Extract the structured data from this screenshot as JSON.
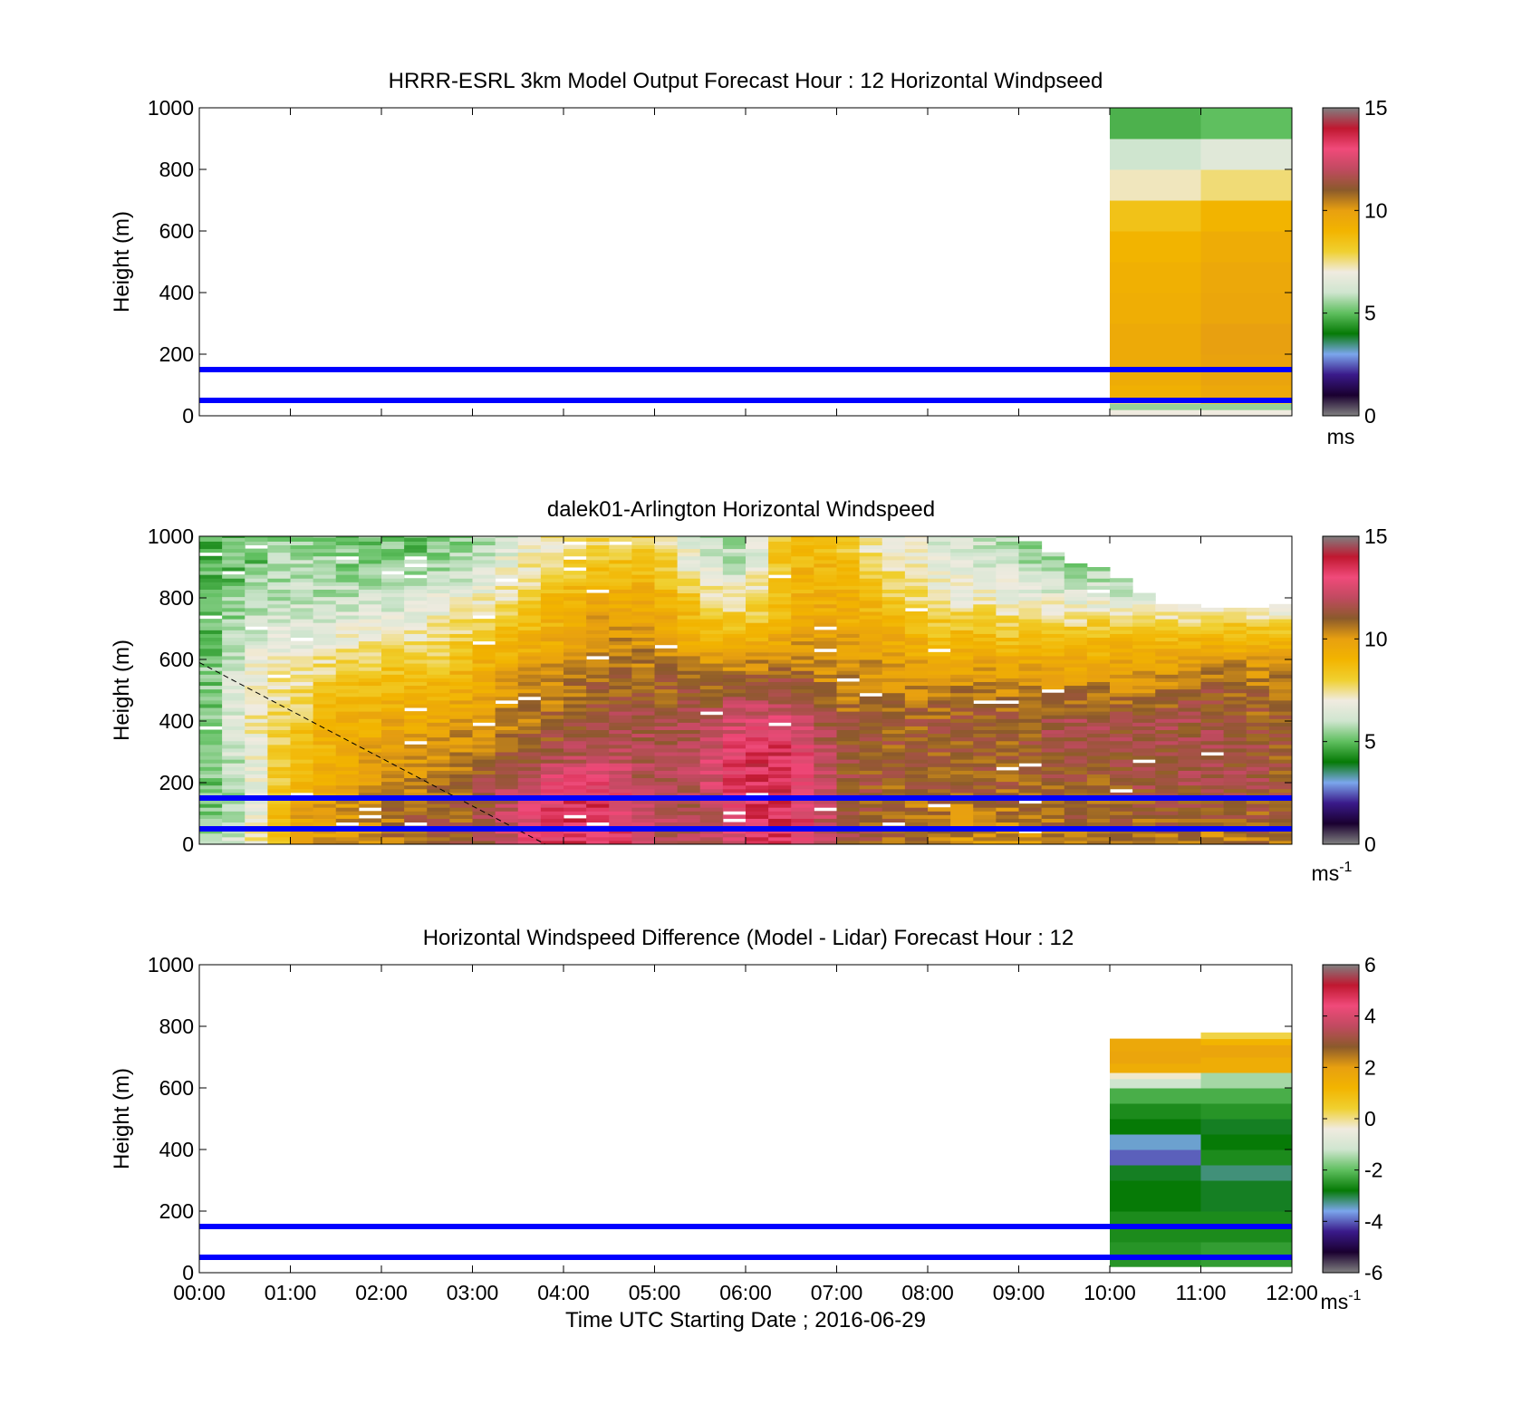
{
  "figure": {
    "xlabel": "Time UTC  Starting Date ; 2016-06-29",
    "x_ticks": [
      "00:00",
      "01:00",
      "02:00",
      "03:00",
      "04:00",
      "05:00",
      "06:00",
      "07:00",
      "08:00",
      "09:00",
      "10:00",
      "11:00",
      "12:00"
    ],
    "line_color": "#0000ff",
    "colormap": {
      "speed_stops": [
        "#808080",
        "#1a0030",
        "#3a1a8a",
        "#7ba6ec",
        "#067a06",
        "#5fbf5f",
        "#cfe5cf",
        "#f0ebe0",
        "#f0d030",
        "#f2b400",
        "#e8a010",
        "#8b5a2b",
        "#c04a60",
        "#f04a7a",
        "#c01830",
        "#808080"
      ],
      "diff_stops": [
        "#808080",
        "#1a0030",
        "#3a1a8a",
        "#7ba6ec",
        "#067a06",
        "#5fbf5f",
        "#cfe5cf",
        "#f0ebe0",
        "#f0d030",
        "#f2b400",
        "#e8a010",
        "#8b5a2b",
        "#c04a60",
        "#f04a7a",
        "#c01830",
        "#808080"
      ]
    }
  },
  "chart_data": [
    {
      "type": "heatmap",
      "title": "HRRR-ESRL 3km Model Output   Forecast Hour : 12 Horizontal Windpseed",
      "ylabel": "Height (m)",
      "xlim": [
        0,
        12
      ],
      "ylim": [
        0,
        1000
      ],
      "y_ticks": [
        "0",
        "200",
        "400",
        "600",
        "800",
        "1000"
      ],
      "colorbar": {
        "ticks": [
          "0",
          "5",
          "10",
          "15"
        ],
        "range": [
          0,
          15
        ],
        "units": "ms"
      },
      "horizontal_lines_m": [
        50,
        150
      ],
      "columns": [
        {
          "x_start": 10,
          "x_end": 11,
          "levels_m": [
            0,
            20,
            40,
            60,
            100,
            150,
            200,
            300,
            400,
            500,
            600,
            700,
            800,
            900,
            1000
          ],
          "values": [
            7.0,
            5.5,
            7.5,
            9.2,
            9.4,
            9.5,
            9.5,
            9.3,
            9.2,
            9.0,
            8.5,
            7.2,
            6.0,
            4.8,
            3.5
          ]
        },
        {
          "x_start": 11,
          "x_end": 12,
          "levels_m": [
            0,
            20,
            40,
            60,
            100,
            150,
            200,
            300,
            400,
            500,
            600,
            700,
            800,
            900,
            1000
          ],
          "values": [
            7.0,
            5.5,
            8.0,
            9.6,
            9.8,
            9.9,
            10.0,
            9.7,
            9.6,
            9.4,
            9.0,
            7.6,
            6.5,
            5.0,
            4.3
          ]
        }
      ]
    },
    {
      "type": "heatmap",
      "title": "dalek01-Arlington  Horizontal Windspeed",
      "ylabel": "Height (m)",
      "xlim": [
        0,
        12
      ],
      "ylim": [
        0,
        1000
      ],
      "y_ticks": [
        "0",
        "200",
        "400",
        "600",
        "800",
        "1000"
      ],
      "colorbar": {
        "ticks": [
          "0",
          "5",
          "10",
          "15"
        ],
        "range": [
          0,
          15
        ],
        "units": "ms-1"
      },
      "horizontal_lines_m": [
        50,
        150
      ],
      "dashed_line": {
        "x": [
          0,
          3.8
        ],
        "y": [
          590,
          0
        ]
      },
      "time_hours": [
        0.0,
        0.5,
        1.0,
        1.5,
        2.0,
        2.5,
        3.0,
        3.5,
        4.0,
        4.5,
        5.0,
        5.5,
        6.0,
        6.5,
        7.0,
        7.5,
        8.0,
        8.5,
        9.0,
        9.5,
        10.0,
        10.5,
        11.0,
        11.5,
        12.0
      ],
      "heights_m": [
        0,
        100,
        200,
        300,
        400,
        500,
        600,
        700,
        800,
        900,
        1000
      ],
      "speed_ms": [
        [
          5.5,
          5.0,
          4.8,
          4.8,
          4.8,
          4.8,
          4.8,
          4.8,
          4.8,
          4.8,
          4.8
        ],
        [
          6.5,
          6.0,
          6.0,
          6.5,
          7.0,
          7.0,
          6.5,
          6.0,
          5.5,
          5.0,
          5.0
        ],
        [
          9.5,
          9.5,
          9.0,
          8.5,
          8.0,
          7.5,
          7.0,
          6.5,
          6.0,
          5.8,
          5.5
        ],
        [
          10.0,
          10.0,
          9.8,
          9.5,
          9.0,
          8.5,
          7.5,
          6.5,
          6.0,
          5.5,
          5.0
        ],
        [
          10.5,
          10.5,
          10.0,
          9.8,
          9.5,
          9.0,
          8.0,
          7.0,
          6.0,
          5.5,
          5.0
        ],
        [
          11.0,
          11.0,
          10.5,
          10.0,
          9.5,
          9.0,
          8.0,
          7.0,
          6.5,
          5.5,
          5.0
        ],
        [
          11.0,
          11.0,
          11.0,
          10.5,
          10.0,
          9.5,
          9.0,
          8.0,
          7.0,
          6.0,
          5.5
        ],
        [
          12.5,
          12.5,
          12.0,
          11.0,
          10.5,
          10.0,
          9.5,
          8.5,
          7.5,
          7.0,
          6.5
        ],
        [
          13.5,
          13.5,
          13.0,
          11.5,
          11.0,
          10.5,
          10.0,
          9.5,
          9.0,
          8.0,
          7.5
        ],
        [
          13.5,
          13.5,
          13.0,
          12.0,
          11.5,
          11.0,
          10.5,
          10.0,
          9.5,
          8.5,
          8.0
        ],
        [
          12.0,
          12.0,
          11.5,
          11.5,
          11.5,
          11.0,
          10.5,
          10.0,
          9.5,
          8.5,
          8.0
        ],
        [
          11.5,
          11.5,
          12.0,
          12.0,
          11.5,
          11.0,
          10.0,
          9.0,
          8.0,
          6.5,
          6.0
        ],
        [
          13.0,
          13.5,
          13.5,
          13.5,
          12.5,
          11.5,
          10.0,
          8.5,
          7.0,
          6.0,
          5.5
        ],
        [
          13.5,
          13.5,
          13.5,
          13.5,
          12.5,
          11.5,
          10.5,
          9.5,
          9.0,
          9.0,
          9.0
        ],
        [
          11.5,
          11.5,
          11.5,
          11.5,
          11.0,
          10.5,
          10.0,
          9.5,
          9.5,
          9.0,
          8.5
        ],
        [
          11.0,
          11.0,
          11.0,
          11.0,
          11.0,
          10.5,
          10.0,
          9.5,
          8.5,
          7.5,
          6.5
        ],
        [
          10.5,
          10.5,
          11.0,
          11.0,
          11.0,
          10.5,
          9.5,
          8.5,
          7.5,
          7.0,
          6.5
        ],
        [
          10.0,
          10.5,
          11.0,
          11.0,
          11.0,
          10.5,
          9.5,
          8.5,
          7.0,
          6.5,
          6.0
        ],
        [
          10.0,
          10.5,
          11.0,
          11.0,
          11.0,
          10.5,
          9.5,
          8.0,
          7.0,
          6.0,
          5.5
        ],
        [
          10.5,
          11.0,
          11.0,
          11.5,
          11.5,
          10.5,
          9.5,
          8.0,
          6.5,
          5.5,
          5.0
        ],
        [
          10.5,
          11.0,
          11.0,
          11.5,
          11.5,
          10.5,
          9.5,
          8.5,
          6.5,
          5.5,
          5.0
        ],
        [
          10.5,
          11.0,
          11.5,
          11.5,
          11.5,
          10.5,
          9.5,
          8.0,
          6.0,
          5.0,
          5.0
        ],
        [
          10.5,
          11.0,
          11.5,
          11.5,
          11.5,
          11.0,
          10.0,
          8.5,
          6.0,
          5.0,
          5.0
        ],
        [
          10.5,
          11.0,
          11.5,
          11.5,
          11.0,
          11.0,
          10.0,
          8.5,
          6.0,
          5.0,
          5.0
        ],
        [
          10.5,
          11.0,
          11.0,
          11.0,
          11.0,
          10.5,
          10.0,
          8.0,
          5.5,
          4.5,
          4.5
        ]
      ],
      "data_top_m": [
        1000,
        1000,
        1000,
        1000,
        1000,
        1000,
        1000,
        1000,
        1000,
        1000,
        1000,
        1000,
        1000,
        1000,
        1000,
        1000,
        1000,
        1000,
        1000,
        920,
        880,
        780,
        770,
        760,
        780
      ]
    },
    {
      "type": "heatmap",
      "title": "Horizontal Windspeed Difference (Model - Lidar) Forecast Hour : 12",
      "ylabel": "Height (m)",
      "xlim": [
        0,
        12
      ],
      "ylim": [
        0,
        1000
      ],
      "y_ticks": [
        "0",
        "200",
        "400",
        "600",
        "800",
        "1000"
      ],
      "colorbar": {
        "ticks": [
          "-6",
          "-4",
          "-2",
          "0",
          "2",
          "4",
          "6"
        ],
        "range": [
          -6,
          6
        ],
        "units": "ms-1"
      },
      "horizontal_lines_m": [
        50,
        150
      ],
      "columns": [
        {
          "x_start": 10,
          "x_end": 11,
          "levels_m": [
            20,
            100,
            200,
            300,
            350,
            400,
            450,
            500,
            550,
            600,
            630,
            650,
            680,
            720
          ],
          "values": [
            -2.5,
            -2.6,
            -2.8,
            -2.9,
            -4.0,
            -3.5,
            -2.8,
            -2.6,
            -2.2,
            -1.2,
            -0.3,
            1.5,
            1.8,
            1.7
          ]
        },
        {
          "x_start": 11,
          "x_end": 12,
          "levels_m": [
            20,
            100,
            200,
            300,
            350,
            400,
            450,
            500,
            550,
            600,
            650,
            700,
            740,
            760
          ],
          "values": [
            -2.4,
            -2.6,
            -2.9,
            -3.2,
            -2.6,
            -2.8,
            -2.9,
            -2.5,
            -2.2,
            -1.5,
            1.5,
            1.8,
            1.2,
            0.3
          ]
        }
      ]
    }
  ]
}
